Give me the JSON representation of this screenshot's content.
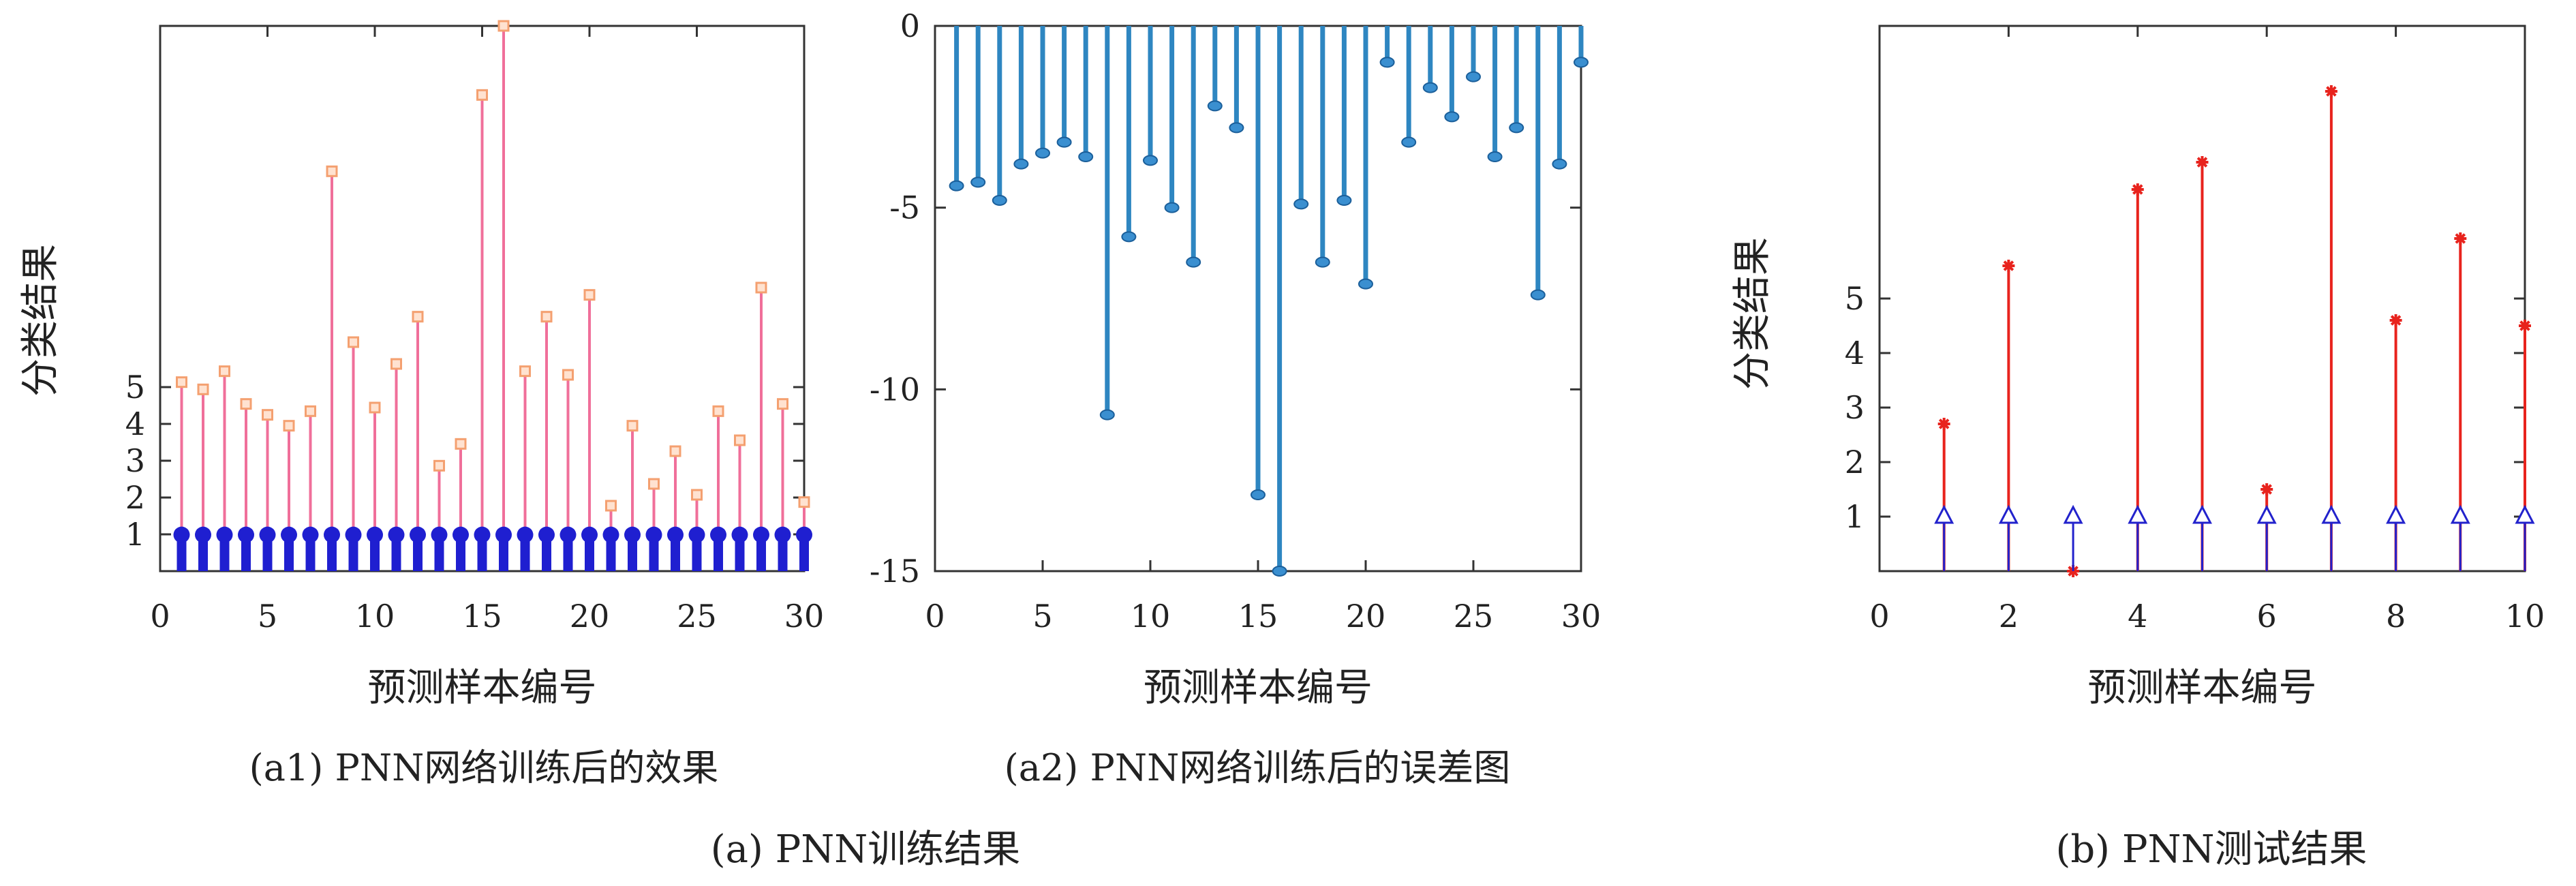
{
  "captions": {
    "a1": "(a1) PNN网络训练后的效果",
    "a2": "(a2) PNN网络训练后的误差图",
    "a": "(a) PNN训练结果",
    "b": "(b) PNN测试结果"
  },
  "colors": {
    "pink": "#f06f9a",
    "marker_orange": "#f4a070",
    "blue_dark": "#1f1fd0",
    "blue_stem": "#2e86c1",
    "blue_marker": "#3a8fd0",
    "red": "#e8231d",
    "triangle": "#2222cc",
    "axis": "#333333"
  },
  "chart_data": [
    {
      "id": "a1",
      "type": "stem",
      "xlabel": "预测样本编号",
      "ylabel": "分类结果",
      "xlim": [
        0,
        30
      ],
      "ylim": [
        0,
        15
      ],
      "xticks": [
        0,
        5,
        10,
        15,
        20,
        25,
        30
      ],
      "yticks": [
        1,
        2,
        3,
        4,
        5
      ],
      "series": [
        {
          "x": [
            1,
            2,
            3,
            4,
            5,
            6,
            7,
            8,
            9,
            10,
            11,
            12,
            13,
            14,
            15,
            16,
            17,
            18,
            19,
            20,
            21,
            22,
            23,
            24,
            25,
            26,
            27,
            28,
            29,
            30
          ],
          "values": [
            5.2,
            5.0,
            5.5,
            4.6,
            4.3,
            4.0,
            4.4,
            11.0,
            6.3,
            4.5,
            5.7,
            7.0,
            2.9,
            3.5,
            13.1,
            15,
            5.5,
            7.0,
            5.4,
            7.6,
            1.8,
            4.0,
            2.4,
            3.3,
            2.1,
            4.4,
            3.6,
            7.8,
            4.6,
            1.9
          ]
        },
        {
          "x": [
            1,
            2,
            3,
            4,
            5,
            6,
            7,
            8,
            9,
            10,
            11,
            12,
            13,
            14,
            15,
            16,
            17,
            18,
            19,
            20,
            21,
            22,
            23,
            24,
            25,
            26,
            27,
            28,
            29,
            30
          ],
          "values": [
            1,
            1,
            1,
            1,
            1,
            1,
            1,
            1,
            1,
            1,
            1,
            1,
            1,
            1,
            1,
            1,
            1,
            1,
            1,
            1,
            1,
            1,
            1,
            1,
            1,
            1,
            1,
            1,
            1,
            1
          ]
        }
      ]
    },
    {
      "id": "a2",
      "type": "stem",
      "xlabel": "预测样本编号",
      "ylabel": "",
      "xlim": [
        0,
        30
      ],
      "ylim": [
        -15,
        0
      ],
      "xticks": [
        0,
        5,
        10,
        15,
        20,
        25,
        30
      ],
      "yticks": [
        0,
        -5,
        -10,
        -15
      ],
      "series": [
        {
          "x": [
            1,
            2,
            3,
            4,
            5,
            6,
            7,
            8,
            9,
            10,
            11,
            12,
            13,
            14,
            15,
            16,
            17,
            18,
            19,
            20,
            21,
            22,
            23,
            24,
            25,
            26,
            27,
            28,
            29,
            30
          ],
          "values": [
            -4.4,
            -4.3,
            -4.8,
            -3.8,
            -3.5,
            -3.2,
            -3.6,
            -10.7,
            -5.8,
            -3.7,
            -5.0,
            -6.5,
            -2.2,
            -2.8,
            -12.9,
            -15,
            -4.9,
            -6.5,
            -4.8,
            -7.1,
            -1.0,
            -3.2,
            -1.7,
            -2.5,
            -1.4,
            -3.6,
            -2.8,
            -7.4,
            -3.8,
            -1.0
          ]
        }
      ]
    },
    {
      "id": "b",
      "type": "stem",
      "xlabel": "预测样本编号",
      "ylabel": "分类结果",
      "xlim": [
        0,
        10
      ],
      "ylim": [
        0,
        10
      ],
      "xticks": [
        0,
        2,
        4,
        6,
        8,
        10
      ],
      "yticks": [
        1,
        2,
        3,
        4,
        5
      ],
      "series": [
        {
          "x": [
            1,
            2,
            3,
            4,
            5,
            6,
            7,
            8,
            9,
            10
          ],
          "values": [
            2.7,
            5.6,
            0,
            7.0,
            7.5,
            1.5,
            8.8,
            4.6,
            6.1,
            4.5
          ]
        },
        {
          "x": [
            1,
            2,
            3,
            4,
            5,
            6,
            7,
            8,
            9,
            10
          ],
          "values": [
            1,
            1,
            1,
            1,
            1,
            1,
            1,
            1,
            1,
            1
          ]
        }
      ]
    }
  ]
}
